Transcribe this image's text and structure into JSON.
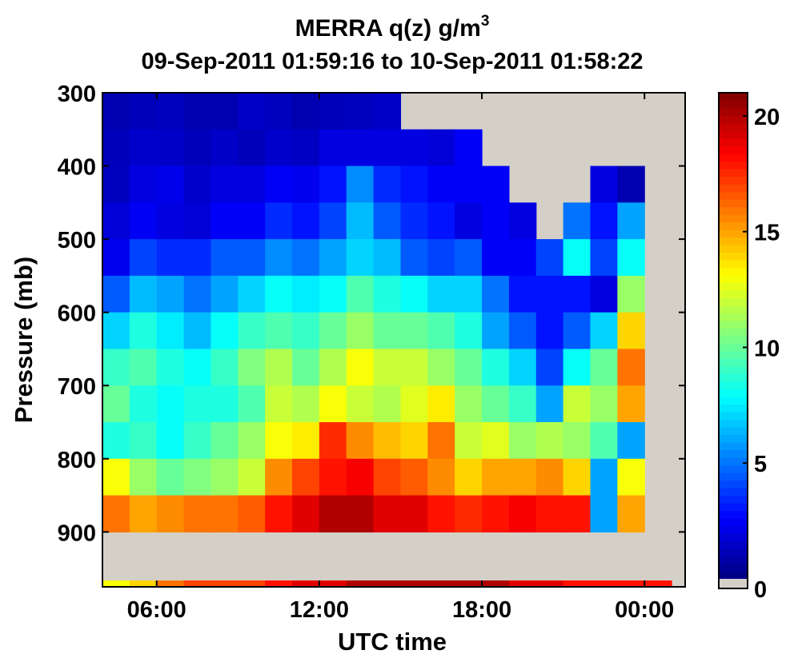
{
  "chart_data": {
    "type": "heatmap",
    "title": "MERRA q(z) g/m",
    "title_superscript": "3",
    "subtitle": "09-Sep-2011 01:59:16 to 10-Sep-2011 01:58:22",
    "xlabel": "UTC time",
    "ylabel": "Pressure (mb)",
    "x_ticks": [
      6,
      12,
      18,
      24
    ],
    "x_tick_labels": [
      "06:00",
      "12:00",
      "18:00",
      "00:00"
    ],
    "xlim": [
      4.0,
      25.5
    ],
    "y_ticks": [
      300,
      400,
      500,
      600,
      700,
      800,
      900
    ],
    "y_tick_labels": [
      "300",
      "400",
      "500",
      "600",
      "700",
      "800",
      "900"
    ],
    "ylim_mb": [
      300,
      975
    ],
    "pressure_levels": [
      300,
      350,
      400,
      450,
      500,
      550,
      600,
      650,
      700,
      750,
      800,
      850,
      900,
      975
    ],
    "layer_midpoints_mb": [
      325,
      375,
      425,
      475,
      525,
      575,
      625,
      675,
      725,
      775,
      825,
      875,
      937.5
    ],
    "colorbar": {
      "colormap": "jet",
      "range": [
        0,
        21
      ],
      "ticks": [
        0,
        5,
        10,
        15,
        20
      ],
      "tick_labels": [
        "0",
        "5",
        "10",
        "15",
        "20"
      ],
      "nodata_color": "#d4d0c8"
    },
    "missing_value_color": "#d4d0c8",
    "time_hours": [
      4.5,
      5.5,
      6.5,
      7.5,
      8.5,
      9.5,
      10.5,
      11.5,
      12.5,
      13.5,
      14.5,
      15.5,
      16.5,
      17.5,
      18.5,
      19.5,
      20.5,
      21.5,
      22.5,
      23.5,
      24.5
    ],
    "q_profiles": [
      [
        1.0,
        1.2,
        1.3,
        1.8,
        2.3,
        4.5,
        7.0,
        9.0,
        10.0,
        8.5,
        13.0,
        16.0
      ],
      [
        1.2,
        1.6,
        2.0,
        2.4,
        4.0,
        6.5,
        8.5,
        9.5,
        8.5,
        9.0,
        11.0,
        15.0
      ],
      [
        1.3,
        1.5,
        2.2,
        2.0,
        3.5,
        6.0,
        7.5,
        8.5,
        8.0,
        8.0,
        10.0,
        15.5
      ],
      [
        1.0,
        1.2,
        1.6,
        1.8,
        3.5,
        5.0,
        6.5,
        8.0,
        8.5,
        9.0,
        10.5,
        16.0
      ],
      [
        1.0,
        1.5,
        2.0,
        2.5,
        4.5,
        6.0,
        8.0,
        9.0,
        8.5,
        10.0,
        11.0,
        16.0
      ],
      [
        1.5,
        1.2,
        2.0,
        2.5,
        4.5,
        7.0,
        9.0,
        10.5,
        9.5,
        11.0,
        12.0,
        16.5
      ],
      [
        1.3,
        1.6,
        2.5,
        3.5,
        5.5,
        8.0,
        9.5,
        11.5,
        12.0,
        13.0,
        15.5,
        18.0
      ],
      [
        1.0,
        1.4,
        2.3,
        3.0,
        5.0,
        7.5,
        9.0,
        10.0,
        11.5,
        13.5,
        17.0,
        19.0
      ],
      [
        1.2,
        2.0,
        3.0,
        4.0,
        6.0,
        8.0,
        10.0,
        11.5,
        13.0,
        17.5,
        18.0,
        20.0
      ],
      [
        1.3,
        2.0,
        5.5,
        6.5,
        7.0,
        9.5,
        11.0,
        13.0,
        12.0,
        15.5,
        18.5,
        20.0
      ],
      [
        1.5,
        2.0,
        3.5,
        4.5,
        6.5,
        8.5,
        10.0,
        12.0,
        11.5,
        14.5,
        17.0,
        19.0
      ],
      [
        null,
        2.0,
        3.0,
        3.5,
        4.5,
        8.0,
        10.0,
        12.0,
        12.5,
        14.0,
        16.5,
        19.0
      ],
      [
        null,
        1.8,
        2.5,
        3.0,
        4.0,
        7.0,
        9.5,
        11.0,
        13.5,
        16.0,
        15.5,
        18.0
      ],
      [
        null,
        2.5,
        2.5,
        2.0,
        4.5,
        7.0,
        8.5,
        10.0,
        11.0,
        12.0,
        14.0,
        17.5
      ],
      [
        null,
        null,
        2.5,
        2.5,
        2.5,
        5.0,
        6.0,
        8.5,
        10.0,
        12.5,
        15.0,
        18.0
      ],
      [
        null,
        null,
        null,
        2.0,
        2.5,
        3.0,
        4.5,
        7.0,
        9.0,
        11.0,
        15.0,
        18.5
      ],
      [
        null,
        null,
        null,
        null,
        4.0,
        3.0,
        3.0,
        4.0,
        6.0,
        11.5,
        15.5,
        18.0
      ],
      [
        null,
        null,
        null,
        5.0,
        8.0,
        3.0,
        4.5,
        8.0,
        12.0,
        11.0,
        14.0,
        18.0
      ],
      [
        null,
        null,
        2.0,
        3.0,
        4.0,
        2.0,
        7.0,
        10.0,
        11.0,
        9.5,
        6.0,
        6.0
      ],
      [
        null,
        null,
        1.0,
        6.0,
        8.0,
        11.0,
        14.0,
        16.0,
        15.0,
        6.0,
        13.0,
        15.0
      ],
      [
        null,
        null,
        null,
        null,
        null,
        null,
        null,
        null,
        null,
        null,
        null,
        null
      ]
    ],
    "surface_layer_q": [
      13,
      14,
      16,
      17,
      17,
      17,
      18,
      19,
      19,
      20,
      20,
      20,
      20,
      20,
      20,
      19,
      19,
      18,
      18,
      18,
      18
    ]
  }
}
